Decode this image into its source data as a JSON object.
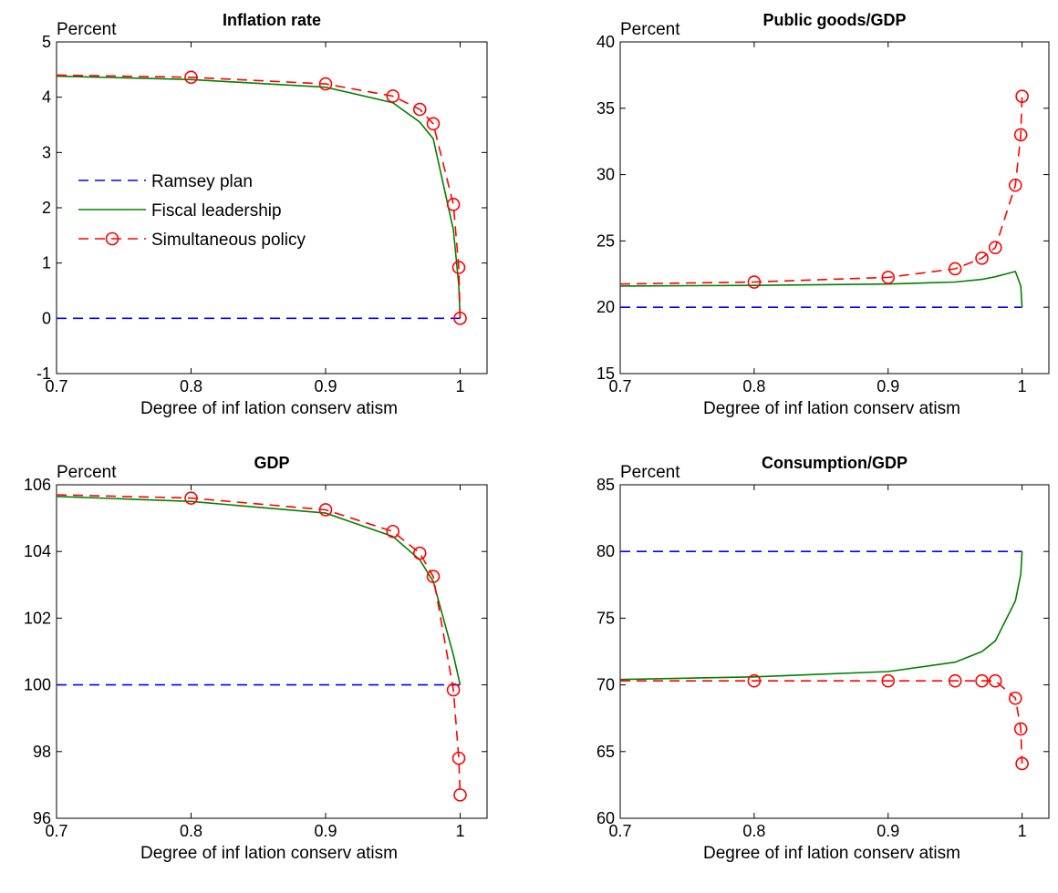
{
  "figure": {
    "legend": {
      "placement": "left-middle of first panel",
      "entries": [
        "Ramsey plan",
        "Fiscal leadership",
        "Simultaneous policy"
      ]
    }
  },
  "chart_data": [
    {
      "type": "line",
      "title": "Inflation rate",
      "unit_label": "Percent",
      "xlabel": "Degree of inf lation conserv atism",
      "ylabel": "",
      "xlim": [
        0.7,
        1.02
      ],
      "ylim": [
        -1,
        5
      ],
      "xticks": [
        "0.7",
        "0.8",
        "0.9",
        "1"
      ],
      "yticks": [
        "-1",
        "0",
        "1",
        "2",
        "3",
        "4",
        "5"
      ],
      "xtick_values": [
        0.7,
        0.8,
        0.9,
        1.0
      ],
      "ytick_values": [
        -1,
        0,
        1,
        2,
        3,
        4,
        5
      ],
      "grid": false,
      "series": [
        {
          "name": "Ramsey plan",
          "color": "#0000ff",
          "style": "dashed",
          "x": [
            0.7,
            1.0
          ],
          "y": [
            0,
            0
          ]
        },
        {
          "name": "Fiscal leadership",
          "color": "#008000",
          "style": "solid",
          "x": [
            0.7,
            0.8,
            0.9,
            0.95,
            0.97,
            0.98,
            0.995,
            0.999,
            1.0
          ],
          "y": [
            4.38,
            4.32,
            4.18,
            3.9,
            3.55,
            3.25,
            1.6,
            0.6,
            0.0
          ]
        },
        {
          "name": "Simultaneous policy",
          "color": "#ff0000",
          "style": "dashed-circle",
          "x": [
            0.7,
            0.8,
            0.9,
            0.95,
            0.97,
            0.98,
            0.995,
            0.999,
            1.0
          ],
          "y": [
            4.4,
            4.36,
            4.24,
            4.02,
            3.78,
            3.52,
            2.06,
            0.92,
            0.0
          ],
          "markers_at": [
            0.8,
            0.9,
            0.95,
            0.97,
            0.98,
            0.995,
            0.999,
            1.0
          ]
        }
      ]
    },
    {
      "type": "line",
      "title": "Public goods/GDP",
      "unit_label": "Percent",
      "xlabel": "Degree of inf lation conserv atism",
      "ylabel": "",
      "xlim": [
        0.7,
        1.02
      ],
      "ylim": [
        15,
        40
      ],
      "xticks": [
        "0.7",
        "0.8",
        "0.9",
        "1"
      ],
      "yticks": [
        "15",
        "20",
        "25",
        "30",
        "35",
        "40"
      ],
      "xtick_values": [
        0.7,
        0.8,
        0.9,
        1.0
      ],
      "ytick_values": [
        15,
        20,
        25,
        30,
        35,
        40
      ],
      "grid": false,
      "series": [
        {
          "name": "Ramsey plan",
          "color": "#0000ff",
          "style": "dashed",
          "x": [
            0.7,
            1.0
          ],
          "y": [
            20,
            20
          ]
        },
        {
          "name": "Fiscal leadership",
          "color": "#008000",
          "style": "solid",
          "x": [
            0.7,
            0.8,
            0.9,
            0.95,
            0.97,
            0.98,
            0.995,
            0.999,
            1.0
          ],
          "y": [
            21.6,
            21.65,
            21.75,
            21.9,
            22.1,
            22.3,
            22.7,
            21.6,
            20.0
          ]
        },
        {
          "name": "Simultaneous policy",
          "color": "#ff0000",
          "style": "dashed-circle",
          "x": [
            0.7,
            0.8,
            0.9,
            0.95,
            0.97,
            0.98,
            0.995,
            0.999,
            1.0
          ],
          "y": [
            21.75,
            21.9,
            22.25,
            22.9,
            23.7,
            24.5,
            29.2,
            33.0,
            35.9
          ],
          "markers_at": [
            0.8,
            0.9,
            0.95,
            0.97,
            0.98,
            0.995,
            0.999,
            1.0
          ]
        }
      ]
    },
    {
      "type": "line",
      "title": "GDP",
      "unit_label": "Percent",
      "xlabel": "Degree of inf lation conserv atism",
      "ylabel": "",
      "xlim": [
        0.7,
        1.02
      ],
      "ylim": [
        96,
        106
      ],
      "xticks": [
        "0.7",
        "0.8",
        "0.9",
        "1"
      ],
      "yticks": [
        "96",
        "98",
        "100",
        "102",
        "104",
        "106"
      ],
      "xtick_values": [
        0.7,
        0.8,
        0.9,
        1.0
      ],
      "ytick_values": [
        96,
        98,
        100,
        102,
        104,
        106
      ],
      "grid": false,
      "series": [
        {
          "name": "Ramsey plan",
          "color": "#0000ff",
          "style": "dashed",
          "x": [
            0.7,
            1.0
          ],
          "y": [
            100,
            100
          ]
        },
        {
          "name": "Fiscal leadership",
          "color": "#008000",
          "style": "solid",
          "x": [
            0.7,
            0.8,
            0.9,
            0.95,
            0.97,
            0.98,
            0.995,
            1.0
          ],
          "y": [
            105.65,
            105.5,
            105.15,
            104.45,
            103.75,
            103.1,
            100.9,
            100.0
          ]
        },
        {
          "name": "Simultaneous policy",
          "color": "#ff0000",
          "style": "dashed-circle",
          "x": [
            0.7,
            0.8,
            0.9,
            0.95,
            0.97,
            0.98,
            0.995,
            0.999,
            1.0
          ],
          "y": [
            105.7,
            105.6,
            105.25,
            104.6,
            103.95,
            103.25,
            99.85,
            97.8,
            96.7
          ],
          "markers_at": [
            0.8,
            0.9,
            0.95,
            0.97,
            0.98,
            0.995,
            0.999,
            1.0
          ]
        }
      ]
    },
    {
      "type": "line",
      "title": "Consumption/GDP",
      "unit_label": "Percent",
      "xlabel": "Degree of inf lation conserv atism",
      "ylabel": "",
      "xlim": [
        0.7,
        1.02
      ],
      "ylim": [
        60,
        85
      ],
      "xticks": [
        "0.7",
        "0.8",
        "0.9",
        "1"
      ],
      "yticks": [
        "60",
        "65",
        "70",
        "75",
        "80",
        "85"
      ],
      "xtick_values": [
        0.7,
        0.8,
        0.9,
        1.0
      ],
      "ytick_values": [
        60,
        65,
        70,
        75,
        80,
        85
      ],
      "grid": false,
      "series": [
        {
          "name": "Ramsey plan",
          "color": "#0000ff",
          "style": "dashed",
          "x": [
            0.7,
            1.0
          ],
          "y": [
            80,
            80
          ]
        },
        {
          "name": "Fiscal leadership",
          "color": "#008000",
          "style": "solid",
          "x": [
            0.7,
            0.8,
            0.9,
            0.95,
            0.97,
            0.98,
            0.995,
            0.999,
            1.0
          ],
          "y": [
            70.4,
            70.6,
            71.0,
            71.7,
            72.5,
            73.3,
            76.3,
            78.3,
            80.0
          ]
        },
        {
          "name": "Simultaneous policy",
          "color": "#ff0000",
          "style": "dashed-circle",
          "x": [
            0.7,
            0.8,
            0.9,
            0.95,
            0.97,
            0.98,
            0.995,
            0.999,
            1.0
          ],
          "y": [
            70.3,
            70.3,
            70.3,
            70.3,
            70.3,
            70.3,
            69.0,
            66.7,
            64.1
          ],
          "markers_at": [
            0.8,
            0.9,
            0.95,
            0.97,
            0.98,
            0.995,
            0.999,
            1.0
          ]
        }
      ]
    }
  ]
}
